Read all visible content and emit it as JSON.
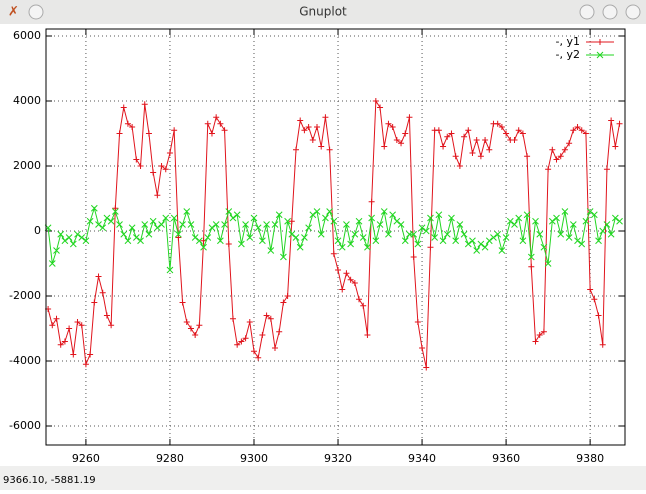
{
  "window": {
    "title": "Gnuplot",
    "status": "9366.10, -5881.19"
  },
  "chart_data": {
    "type": "line",
    "x": [
      9251,
      9252,
      9253,
      9254,
      9255,
      9256,
      9257,
      9258,
      9259,
      9260,
      9261,
      9262,
      9263,
      9264,
      9265,
      9266,
      9267,
      9268,
      9269,
      9270,
      9271,
      9272,
      9273,
      9274,
      9275,
      9276,
      9277,
      9278,
      9279,
      9280,
      9281,
      9282,
      9283,
      9284,
      9285,
      9286,
      9287,
      9288,
      9289,
      9290,
      9291,
      9292,
      9293,
      9294,
      9295,
      9296,
      9297,
      9298,
      9299,
      9300,
      9301,
      9302,
      9303,
      9304,
      9305,
      9306,
      9307,
      9308,
      9309,
      9310,
      9311,
      9312,
      9313,
      9314,
      9315,
      9316,
      9317,
      9318,
      9319,
      9320,
      9321,
      9322,
      9323,
      9324,
      9325,
      9326,
      9327,
      9328,
      9329,
      9330,
      9331,
      9332,
      9333,
      9334,
      9335,
      9336,
      9337,
      9338,
      9339,
      9340,
      9341,
      9342,
      9343,
      9344,
      9345,
      9346,
      9347,
      9348,
      9349,
      9350,
      9351,
      9352,
      9353,
      9354,
      9355,
      9356,
      9357,
      9358,
      9359,
      9360,
      9361,
      9362,
      9363,
      9364,
      9365,
      9366,
      9367,
      9368,
      9369,
      9370,
      9371,
      9372,
      9373,
      9374,
      9375,
      9376,
      9377,
      9378,
      9379,
      9380,
      9381,
      9382,
      9383,
      9384,
      9385,
      9386,
      9387
    ],
    "series": [
      {
        "name": "-, y1",
        "color": "#e0141c",
        "marker": "plus",
        "values": [
          -2400,
          -2900,
          -2700,
          -3500,
          -3400,
          -3000,
          -3800,
          -2800,
          -2900,
          -4100,
          -3800,
          -2200,
          -1400,
          -1900,
          -2600,
          -2900,
          700,
          3000,
          3800,
          3300,
          3200,
          2200,
          2000,
          3900,
          3000,
          1800,
          1100,
          2000,
          1900,
          2400,
          3100,
          -200,
          -2200,
          -2800,
          -3000,
          -3200,
          -2900,
          -300,
          3300,
          3000,
          3500,
          3300,
          3100,
          -400,
          -2700,
          -3500,
          -3400,
          -3300,
          -2800,
          -3700,
          -3900,
          -3200,
          -2600,
          -2700,
          -3600,
          -3100,
          -2200,
          -2000,
          300,
          2500,
          3400,
          3100,
          3200,
          2800,
          3200,
          2600,
          3500,
          2500,
          -700,
          -1200,
          -1800,
          -1300,
          -1500,
          -1600,
          -2100,
          -2300,
          -3200,
          900,
          4000,
          3800,
          2600,
          3300,
          3200,
          2800,
          2700,
          3000,
          3500,
          -800,
          -2800,
          -3600,
          -4200,
          -500,
          3100,
          3100,
          2600,
          2900,
          3000,
          2300,
          2000,
          2900,
          3100,
          2400,
          2800,
          2300,
          2800,
          2500,
          3300,
          3300,
          3200,
          3000,
          2800,
          2800,
          3100,
          3000,
          2300,
          -1100,
          -3400,
          -3200,
          -3100,
          1900,
          2500,
          2200,
          2300,
          2500,
          2700,
          3100,
          3200,
          3100,
          3000,
          -1800,
          -2100,
          -2600,
          -3500,
          1900,
          3400,
          2600,
          3300
        ]
      },
      {
        "name": "-, y2",
        "color": "#22d622",
        "marker": "cross",
        "values": [
          100,
          -1000,
          -600,
          -100,
          -300,
          -200,
          -400,
          -100,
          -200,
          -300,
          300,
          700,
          200,
          100,
          400,
          300,
          600,
          200,
          -100,
          -300,
          100,
          -200,
          -300,
          200,
          -100,
          300,
          100,
          200,
          400,
          -1200,
          400,
          -100,
          200,
          600,
          200,
          -200,
          -300,
          -500,
          -200,
          100,
          200,
          -300,
          200,
          600,
          400,
          500,
          -400,
          200,
          -200,
          400,
          100,
          -300,
          200,
          -600,
          200,
          500,
          -800,
          300,
          -100,
          -200,
          -500,
          -200,
          100,
          500,
          600,
          -100,
          400,
          600,
          300,
          -300,
          -500,
          200,
          -400,
          -100,
          300,
          -200,
          -500,
          400,
          -300,
          200,
          600,
          -100,
          500,
          300,
          200,
          -300,
          -100,
          -100,
          -400,
          100,
          0,
          400,
          -200,
          500,
          -300,
          -100,
          400,
          -300,
          200,
          -100,
          -400,
          -300,
          -600,
          -400,
          -500,
          -300,
          -200,
          -100,
          -600,
          -200,
          300,
          200,
          400,
          -300,
          500,
          -800,
          300,
          -100,
          -500,
          -1000,
          300,
          400,
          -100,
          600,
          -200,
          200,
          -300,
          -400,
          300,
          600,
          500,
          -300,
          0,
          200,
          -100,
          400,
          300
        ]
      }
    ],
    "xlim": [
      9250.5,
      9388.3
    ],
    "ylim": [
      -6585,
      6215
    ],
    "xticks": [
      9260,
      9280,
      9300,
      9320,
      9340,
      9360,
      9380
    ],
    "yticks": [
      -6000,
      -4000,
      -2000,
      0,
      2000,
      4000,
      6000
    ],
    "grid": true,
    "legend": "top-right"
  }
}
